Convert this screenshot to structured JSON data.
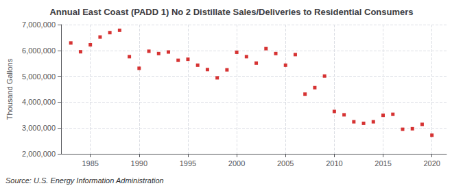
{
  "chart_data": {
    "type": "scatter",
    "title": "Annual East Coast (PADD 1) No 2 Distillate Sales/Deliveries to Residential Consumers",
    "ylabel": "Thousand Gallons",
    "annotations": [
      "Source: U.S. Energy Information Administration"
    ],
    "x": [
      1983,
      1984,
      1985,
      1986,
      1987,
      1988,
      1989,
      1990,
      1991,
      1992,
      1993,
      1994,
      1995,
      1996,
      1997,
      1998,
      1999,
      2000,
      2001,
      2002,
      2003,
      2004,
      2005,
      2006,
      2007,
      2008,
      2009,
      2010,
      2011,
      2012,
      2013,
      2014,
      2015,
      2016,
      2017,
      2018,
      2019,
      2020
    ],
    "values": [
      6290000,
      5950000,
      6220000,
      6520000,
      6690000,
      6780000,
      5760000,
      5310000,
      5970000,
      5880000,
      5940000,
      5620000,
      5660000,
      5430000,
      5260000,
      4940000,
      5250000,
      5930000,
      5760000,
      5510000,
      6070000,
      5880000,
      5430000,
      5840000,
      4310000,
      4560000,
      5010000,
      3640000,
      3510000,
      3240000,
      3180000,
      3240000,
      3490000,
      3530000,
      2950000,
      2970000,
      3140000,
      2720000
    ],
    "color": "#CC0000",
    "marker": "square",
    "xlim": [
      1982.0,
      2021.5
    ],
    "xticks": [
      1985,
      1990,
      1995,
      2000,
      2005,
      2010,
      2015,
      2020
    ],
    "ylim": [
      2000000,
      7000000
    ],
    "yticks": [
      {
        "value": 2000000,
        "label": "2,000,000"
      },
      {
        "value": 3000000,
        "label": "3,000,000"
      },
      {
        "value": 4000000,
        "label": "4,000,000"
      },
      {
        "value": 5000000,
        "label": "5,000,000"
      },
      {
        "value": 6000000,
        "label": "6,000,000"
      },
      {
        "value": 7000000,
        "label": "7,000,000"
      }
    ],
    "grid": true
  }
}
